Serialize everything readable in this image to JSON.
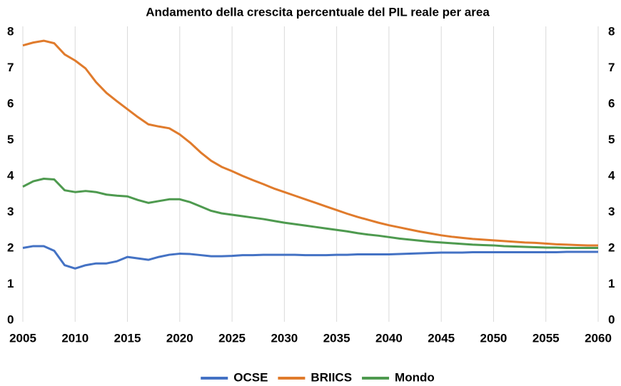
{
  "chart_data": {
    "type": "line",
    "title": "Andamento della crescita percentuale del PIL reale per area",
    "x": [
      2005,
      2006,
      2007,
      2008,
      2009,
      2010,
      2011,
      2012,
      2013,
      2014,
      2015,
      2016,
      2017,
      2018,
      2019,
      2020,
      2021,
      2022,
      2023,
      2024,
      2025,
      2026,
      2027,
      2028,
      2029,
      2030,
      2031,
      2032,
      2033,
      2034,
      2035,
      2036,
      2037,
      2038,
      2039,
      2040,
      2041,
      2042,
      2043,
      2044,
      2045,
      2046,
      2047,
      2048,
      2049,
      2050,
      2051,
      2052,
      2053,
      2054,
      2055,
      2056,
      2057,
      2058,
      2059,
      2060
    ],
    "series": [
      {
        "name": "OCSE",
        "color": "#4472c4",
        "values": [
          2.05,
          2.1,
          2.1,
          1.97,
          1.57,
          1.48,
          1.57,
          1.62,
          1.62,
          1.68,
          1.8,
          1.76,
          1.72,
          1.8,
          1.86,
          1.89,
          1.88,
          1.85,
          1.82,
          1.82,
          1.83,
          1.85,
          1.85,
          1.86,
          1.86,
          1.86,
          1.86,
          1.85,
          1.85,
          1.85,
          1.86,
          1.86,
          1.87,
          1.87,
          1.87,
          1.87,
          1.88,
          1.89,
          1.9,
          1.91,
          1.92,
          1.92,
          1.92,
          1.93,
          1.93,
          1.93,
          1.93,
          1.93,
          1.93,
          1.93,
          1.93,
          1.93,
          1.94,
          1.94,
          1.94,
          1.94
        ]
      },
      {
        "name": "BRIICS",
        "color": "#e07b2c",
        "values": [
          7.67,
          7.75,
          7.8,
          7.73,
          7.42,
          7.25,
          7.03,
          6.65,
          6.35,
          6.12,
          5.9,
          5.68,
          5.48,
          5.42,
          5.37,
          5.2,
          4.97,
          4.7,
          4.47,
          4.3,
          4.18,
          4.05,
          3.93,
          3.82,
          3.7,
          3.6,
          3.5,
          3.4,
          3.3,
          3.2,
          3.1,
          3.0,
          2.91,
          2.83,
          2.75,
          2.68,
          2.62,
          2.56,
          2.5,
          2.45,
          2.4,
          2.36,
          2.33,
          2.3,
          2.28,
          2.26,
          2.24,
          2.22,
          2.2,
          2.19,
          2.17,
          2.15,
          2.14,
          2.13,
          2.12,
          2.12
        ]
      },
      {
        "name": "Mondo",
        "color": "#4e9a4f",
        "values": [
          3.75,
          3.9,
          3.97,
          3.95,
          3.65,
          3.6,
          3.63,
          3.6,
          3.53,
          3.5,
          3.48,
          3.38,
          3.3,
          3.35,
          3.4,
          3.4,
          3.32,
          3.2,
          3.08,
          3.01,
          2.97,
          2.93,
          2.89,
          2.85,
          2.8,
          2.75,
          2.71,
          2.67,
          2.63,
          2.59,
          2.55,
          2.51,
          2.46,
          2.42,
          2.39,
          2.35,
          2.31,
          2.28,
          2.25,
          2.22,
          2.2,
          2.18,
          2.16,
          2.14,
          2.13,
          2.12,
          2.1,
          2.09,
          2.08,
          2.07,
          2.06,
          2.06,
          2.05,
          2.05,
          2.05,
          2.05
        ]
      }
    ],
    "xlim": [
      2005,
      2060
    ],
    "xticks": [
      2005,
      2010,
      2015,
      2020,
      2025,
      2030,
      2035,
      2040,
      2045,
      2050,
      2055,
      2060
    ],
    "ylim": [
      0,
      8
    ],
    "yticks": [
      0,
      1,
      2,
      3,
      4,
      5,
      6,
      7,
      8
    ],
    "y2lim": [
      0,
      8
    ],
    "y2ticks": [
      0,
      1,
      2,
      3,
      4,
      5,
      6,
      7,
      8
    ],
    "grid": "x",
    "legend": "bottom"
  }
}
